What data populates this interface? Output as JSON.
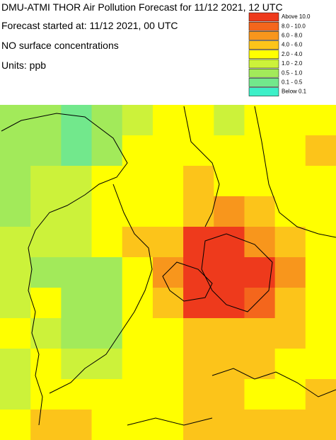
{
  "header": {
    "title": "DMU-ATMI THOR Air Pollution Forecast for 11/12 2021, 12 UTC",
    "started": "Forecast started at: 11/12 2021, 00 UTC",
    "field": "NO surface concentrations",
    "units": "Units: ppb"
  },
  "legend": [
    {
      "label": "Above  10.0",
      "color": "#ee3a1c"
    },
    {
      "label": "8.0 - 10.0",
      "color": "#f4661c"
    },
    {
      "label": "6.0 -  8.0",
      "color": "#f8961c"
    },
    {
      "label": "4.0 -  6.0",
      "color": "#fcc41a"
    },
    {
      "label": "2.0 -  4.0",
      "color": "#ffff00"
    },
    {
      "label": "1.0 -  2.0",
      "color": "#ccf23a"
    },
    {
      "label": "0.5 -  1.0",
      "color": "#a2ea5a"
    },
    {
      "label": "0.1 -  0.5",
      "color": "#72e88c"
    },
    {
      "label": "Below   0.1",
      "color": "#3cf0c8"
    }
  ],
  "map": {
    "grid": [
      [
        "#a2ea5a",
        "#a2ea5a",
        "#72e88c",
        "#a2ea5a",
        "#ccf23a",
        "#ffff00",
        "#ffff00",
        "#ccf23a",
        "#ffff00",
        "#ffff00",
        "#ffff00"
      ],
      [
        "#a2ea5a",
        "#a2ea5a",
        "#72e88c",
        "#a2ea5a",
        "#ffff00",
        "#ffff00",
        "#ffff00",
        "#ffff00",
        "#ffff00",
        "#ffff00",
        "#fcc41a"
      ],
      [
        "#a2ea5a",
        "#ccf23a",
        "#ccf23a",
        "#ffff00",
        "#ffff00",
        "#ffff00",
        "#fcc41a",
        "#ffff00",
        "#ffff00",
        "#ffff00",
        "#ffff00"
      ],
      [
        "#a2ea5a",
        "#ccf23a",
        "#ccf23a",
        "#ffff00",
        "#ffff00",
        "#ffff00",
        "#fcc41a",
        "#f8961c",
        "#fcc41a",
        "#ffff00",
        "#ffff00"
      ],
      [
        "#ccf23a",
        "#ccf23a",
        "#ccf23a",
        "#ffff00",
        "#fcc41a",
        "#fcc41a",
        "#ee3a1c",
        "#ee3a1c",
        "#f8961c",
        "#fcc41a",
        "#ffff00"
      ],
      [
        "#ccf23a",
        "#a2ea5a",
        "#a2ea5a",
        "#a2ea5a",
        "#ffff00",
        "#f8961c",
        "#ee3a1c",
        "#ee3a1c",
        "#ee3a1c",
        "#f8961c",
        "#ffff00"
      ],
      [
        "#ccf23a",
        "#ffff00",
        "#a2ea5a",
        "#a2ea5a",
        "#ffff00",
        "#fcc41a",
        "#ee3a1c",
        "#ee3a1c",
        "#f4661c",
        "#fcc41a",
        "#ffff00"
      ],
      [
        "#ffff00",
        "#ccf23a",
        "#a2ea5a",
        "#a2ea5a",
        "#ffff00",
        "#ffff00",
        "#fcc41a",
        "#fcc41a",
        "#fcc41a",
        "#fcc41a",
        "#ffff00"
      ],
      [
        "#ccf23a",
        "#ffff00",
        "#ccf23a",
        "#ccf23a",
        "#ffff00",
        "#ffff00",
        "#fcc41a",
        "#fcc41a",
        "#fcc41a",
        "#ffff00",
        "#ffff00"
      ],
      [
        "#ccf23a",
        "#ffff00",
        "#ffff00",
        "#ffff00",
        "#ffff00",
        "#ffff00",
        "#fcc41a",
        "#fcc41a",
        "#ffff00",
        "#ffff00",
        "#fcc41a"
      ],
      [
        "#ffff00",
        "#fcc41a",
        "#fcc41a",
        "#ffff00",
        "#ffff00",
        "#ffff00",
        "#fcc41a",
        "#fcc41a",
        "#fcc41a",
        "#fcc41a",
        "#fcc41a"
      ]
    ]
  }
}
